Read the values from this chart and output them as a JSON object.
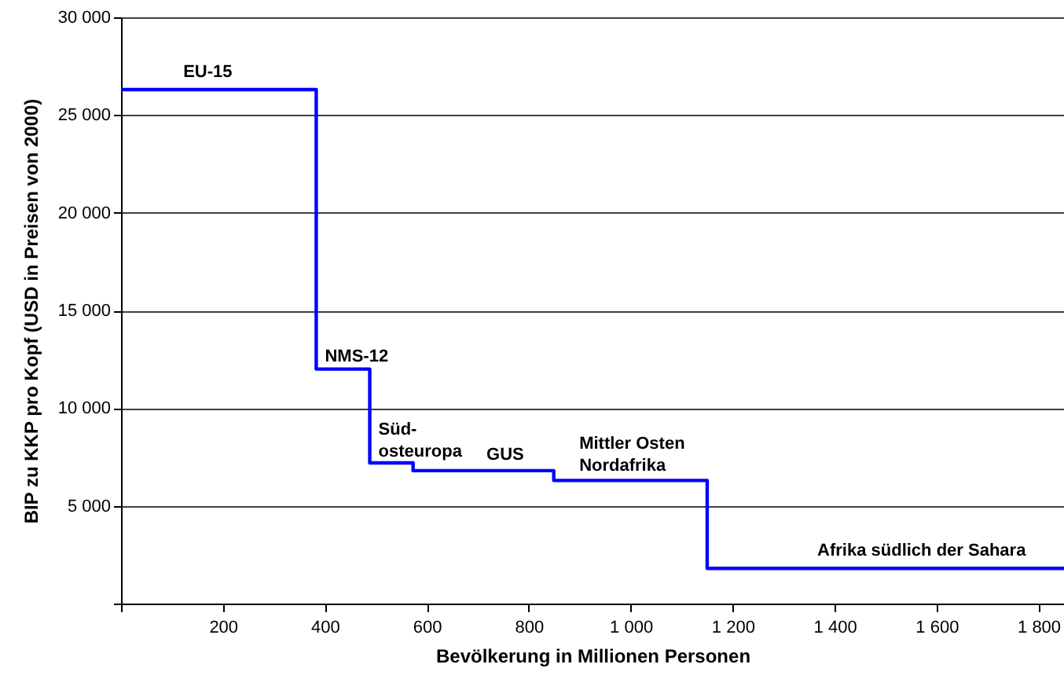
{
  "chart_data": {
    "type": "step",
    "xlabel": "Bevölkerung in Millionen Personen",
    "ylabel": "BIP zu KKP pro Kopf (USD in Preisen von 2000)",
    "x": [
      0,
      383,
      488,
      573,
      849,
      1150,
      1850
    ],
    "series": [
      {
        "color": "#0000ff",
        "values": [
          26300,
          12000,
          7200,
          6800,
          6300,
          1800,
          1800
        ]
      }
    ],
    "xlim": [
      0,
      1850
    ],
    "xticks": [
      {
        "value": 0,
        "label": null
      },
      200,
      400,
      600,
      800,
      {
        "value": 1000,
        "label": "1 000"
      },
      {
        "value": 1200,
        "label": "1 200"
      },
      {
        "value": 1400,
        "label": "1 400"
      },
      {
        "value": 1600,
        "label": "1 600"
      },
      {
        "value": 1800,
        "label": "1 800"
      }
    ],
    "ylim": [
      0,
      30000
    ],
    "yticks": [
      {
        "value": 0,
        "label": null
      },
      {
        "value": 5000,
        "label": "5 000"
      },
      {
        "value": 10000,
        "label": "10 000"
      },
      {
        "value": 15000,
        "label": "15 000"
      },
      {
        "value": 20000,
        "label": "20 000"
      },
      {
        "value": 25000,
        "label": "25 000"
      },
      {
        "value": 30000,
        "label": "30 000"
      }
    ],
    "grid": "y",
    "line_style": "solid",
    "marker": "none",
    "annotations": [
      {
        "text": "EU-15",
        "x": 122,
        "y": 26300
      },
      {
        "text": "NMS-12",
        "x": 400,
        "y": 12000
      },
      {
        "text": "Süd-\nosteuropa",
        "x": 505,
        "y": 7200
      },
      {
        "text": "GUS",
        "x": 717,
        "y": 6800
      },
      {
        "text": "Mittler Osten\nNordafrika",
        "x": 899,
        "y": 6300
      },
      {
        "text": "Afrika südlich der Sahara",
        "x": 1366,
        "y": 1800
      }
    ]
  }
}
